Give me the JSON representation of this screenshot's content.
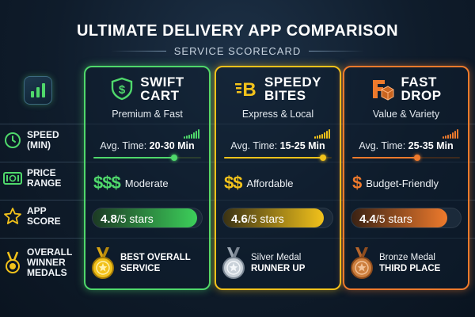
{
  "header": {
    "title": "ULTIMATE DELIVERY APP COMPARISON",
    "subtitle": "SERVICE SCORECARD"
  },
  "rows": {
    "speed": "SPEED\n(MIN)",
    "price": "PRICE\nRANGE",
    "score": "APP\nSCORE",
    "winner": "OVERALL\nWINNER\nMEDALS"
  },
  "apps": [
    {
      "name_line1": "SWIFT",
      "name_line2": "CART",
      "tagline": "Premium & Fast",
      "avg_label": "Avg. Time:",
      "avg_value": "20-30 Min",
      "price_symbol": "$$$",
      "price_label": "Moderate",
      "score_value": "4.8",
      "score_suffix": "/5 stars",
      "score_fraction": 0.96,
      "medal_line1": "BEST OVERALL",
      "medal_line2": "SERVICE",
      "accent": "#4fd86b",
      "icon": "shield-dollar-icon",
      "medal": "gold-medal-icon"
    },
    {
      "name_line1": "SPEEDY",
      "name_line2": "BITES",
      "tagline": "Express & Local",
      "avg_label": "Avg. Time:",
      "avg_value": "15-25 Min",
      "price_symbol": "$$",
      "price_label": "Affordable",
      "score_value": "4.6",
      "score_suffix": "/5 stars",
      "score_fraction": 0.92,
      "medal_line1": "Silver Medal",
      "medal_line2": "RUNNER UP",
      "accent": "#f2c21b",
      "icon": "speed-b-icon",
      "medal": "silver-medal-icon"
    },
    {
      "name_line1": "FAST",
      "name_line2": "DROP",
      "tagline": "Value & Variety",
      "avg_label": "Avg. Time:",
      "avg_value": "25-35 Min",
      "price_symbol": "$",
      "price_label": "Budget-Friendly",
      "score_value": "4.4",
      "score_suffix": "/5 stars",
      "score_fraction": 0.88,
      "medal_line1": "Bronze Medal",
      "medal_line2": "THIRD PLACE",
      "accent": "#ee7a2c",
      "icon": "box-f-icon",
      "medal": "bronze-medal-icon"
    }
  ]
}
